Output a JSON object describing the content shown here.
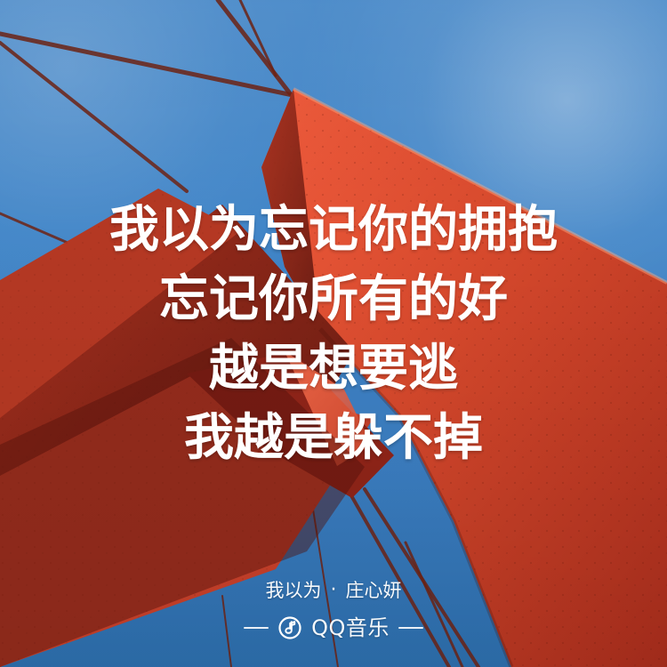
{
  "lyrics": {
    "lines": [
      "我以为忘记你的拥抱",
      "忘记你所有的好",
      "越是想要逃",
      "我越是躲不掉"
    ]
  },
  "song": {
    "title": "我以为",
    "separator": "·",
    "artist": "庄心妍"
  },
  "brand": {
    "icon": "music-note-circle-icon",
    "name": "QQ音乐"
  },
  "colors": {
    "sky_blue": "#3f84c7",
    "bridge_red": "#d94b2e",
    "text_white": "#ffffff"
  }
}
